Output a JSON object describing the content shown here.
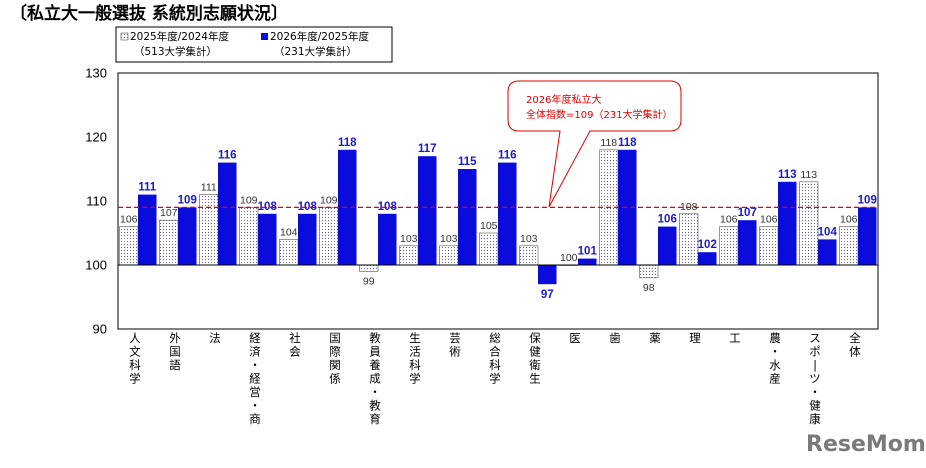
{
  "title": "〔私立大一般選抜 系統別志願状況〕",
  "legend": [
    {
      "line1": "2025年度/2024年度",
      "line2": "（513大学集計）"
    },
    {
      "line1": "2026年度/2025年度",
      "line2": "（231大学集計）"
    }
  ],
  "callout": {
    "line1": "2026年度私立大",
    "line2": "全体指数=109（231大学集計）"
  },
  "logo": "ReseMom",
  "colors": {
    "series_a": "#ffffff",
    "series_a_dots": "#6a6a8a",
    "series_b": "#0b0bdc",
    "reference": "#e00000",
    "value_b_text": "#1a1acc"
  },
  "chart_data": {
    "type": "bar",
    "title": "〔私立大一般選抜 系統別志願状況〕",
    "categories": [
      "人文科学",
      "外国語",
      "法",
      "経済・経営・商",
      "社会",
      "国際関係",
      "教員養成・教育",
      "生活科学",
      "芸術",
      "総合科学",
      "保健衛生",
      "医",
      "歯",
      "薬",
      "理",
      "工",
      "農・水産",
      "スポーツ・健康",
      "全体"
    ],
    "series": [
      {
        "name": "2025年度/2024年度（513大学集計）",
        "values": [
          106,
          107,
          111,
          109,
          104,
          109,
          99,
          103,
          103,
          105,
          103,
          100,
          118,
          98,
          108,
          106,
          106,
          113,
          106
        ]
      },
      {
        "name": "2026年度/2025年度（231大学集計）",
        "values": [
          111,
          109,
          116,
          108,
          108,
          118,
          108,
          117,
          115,
          116,
          97,
          101,
          118,
          106,
          102,
          107,
          113,
          104,
          109
        ]
      }
    ],
    "baseline": 100,
    "reference_line": 109,
    "ylim": [
      90,
      130
    ],
    "yticks": [
      90,
      100,
      110,
      120,
      130
    ],
    "xlabel": "",
    "ylabel": "",
    "grid": false,
    "legend_position": "top-left"
  }
}
